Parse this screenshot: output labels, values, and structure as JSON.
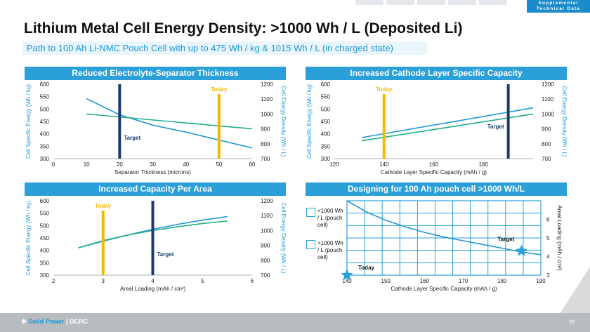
{
  "header": {
    "supplemental": [
      "Supplemental",
      "Technical Data"
    ],
    "title": "Lithium Metal Cell Energy Density: >1000 Wh / L (Deposited Li)",
    "subtitle": "Path to 100 Ah Li-NMC Pouch Cell with up to 475 Wh / kg & 1015 Wh / L (in charged state)"
  },
  "colors": {
    "blue_line": "#2196d6",
    "teal_line": "#1fae8c",
    "today": "#f5b800",
    "target": "#1b3b6f",
    "header": "#2a9fd8"
  },
  "footer": {
    "logo_solid": "Solid Power",
    "logo_dcrc": "DCRC",
    "page": "55"
  },
  "chart_data": [
    {
      "type": "line",
      "title": "Reduced Electrolyte-Separator Thickness",
      "xlabel": "Separator Thickness (microns)",
      "ylabel": "Cell Specific Energy (Wh / kg)",
      "y2label": "Cell Energy Density (Wh / L)",
      "xlim": [
        0,
        60
      ],
      "xticks": [
        0,
        10,
        20,
        30,
        40,
        50,
        60
      ],
      "ylim": [
        300,
        600
      ],
      "yticks": [
        300,
        350,
        400,
        450,
        500,
        550,
        600
      ],
      "y2lim": [
        700,
        1200
      ],
      "y2ticks": [
        700,
        800,
        900,
        1000,
        1100,
        1200
      ],
      "series": [
        {
          "axis": "y",
          "color": "blue",
          "x": [
            10,
            20,
            30,
            40,
            50,
            60
          ],
          "values": [
            542,
            477,
            435,
            407,
            375,
            343
          ]
        },
        {
          "axis": "y2",
          "color": "teal",
          "x": [
            10,
            60
          ],
          "values": [
            1000,
            900
          ]
        }
      ],
      "markers": [
        {
          "label": "Today",
          "x": 50,
          "color": "today"
        },
        {
          "label": "Target",
          "x": 20,
          "color": "target"
        }
      ]
    },
    {
      "type": "line",
      "title": "Increased Cathode Layer Specific Capacity",
      "xlabel": "Cathode Layer Specific Capacity (mAh / g)",
      "ylabel": "Cell Specific Energy (Wh / kg)",
      "y2label": "Cell Energy Density (Wh / L)",
      "xlim": [
        120,
        200
      ],
      "xticks": [
        120,
        140,
        160,
        180
      ],
      "ylim": [
        300,
        600
      ],
      "yticks": [
        300,
        350,
        400,
        450,
        500,
        550,
        600
      ],
      "y2lim": [
        700,
        1200
      ],
      "y2ticks": [
        700,
        800,
        900,
        1000,
        1100,
        1200
      ],
      "series": [
        {
          "axis": "y",
          "color": "blue",
          "x": [
            131,
            200
          ],
          "values": [
            385,
            505
          ]
        },
        {
          "axis": "y2",
          "color": "teal",
          "x": [
            131,
            200
          ],
          "values": [
            820,
            1000
          ]
        }
      ],
      "markers": [
        {
          "label": "Today",
          "x": 140,
          "color": "today"
        },
        {
          "label": "Target",
          "x": 190,
          "color": "target"
        }
      ]
    },
    {
      "type": "line",
      "title": "Increased Capacity Per Area",
      "xlabel": "Areal Loading (mAh / cm²)",
      "ylabel": "Cell Specific Energy (Wh / kg)",
      "y2label": "Cell Energy Density (Wh / L)",
      "xlim": [
        2,
        6
      ],
      "xticks": [
        2,
        3,
        4,
        5,
        6
      ],
      "ylim": [
        300,
        600
      ],
      "yticks": [
        300,
        350,
        400,
        450,
        500,
        550,
        600
      ],
      "y2lim": [
        700,
        1200
      ],
      "y2ticks": [
        700,
        800,
        900,
        1000,
        1100,
        1200
      ],
      "series": [
        {
          "axis": "y",
          "color": "blue",
          "x": [
            2.5,
            3,
            3.5,
            4,
            4.5,
            5,
            5.5
          ],
          "values": [
            410,
            437,
            462,
            485,
            505,
            522,
            536
          ]
        },
        {
          "axis": "y2",
          "color": "teal",
          "x": [
            2.5,
            3,
            3.5,
            4,
            4.5,
            5,
            5.5
          ],
          "values": [
            883,
            932,
            970,
            1000,
            1025,
            1047,
            1063
          ]
        }
      ],
      "markers": [
        {
          "label": "Today",
          "x": 3,
          "color": "today"
        },
        {
          "label": "Target",
          "x": 4,
          "color": "target"
        }
      ]
    },
    {
      "type": "line",
      "title": "Designing for 100 Ah pouch cell >1000 Wh/L",
      "xlabel": "Cathode Layer Specific Capacity (mAh / g)",
      "y2label": "Areal Loading (mAh / cm²)",
      "xlim": [
        140,
        190
      ],
      "xticks": [
        140,
        150,
        160,
        170,
        180,
        190
      ],
      "y2lim": [
        3,
        7
      ],
      "y2ticks": [
        3,
        4,
        5,
        6
      ],
      "grid": true,
      "legend": [
        {
          "label": "<1000 Wh / L (pouch cell)"
        },
        {
          "label": ">1000 Wh / L (pouch cell)"
        }
      ],
      "series": [
        {
          "axis": "y2",
          "color": "blue",
          "x": [
            140,
            145,
            150,
            155,
            160,
            165,
            170,
            175,
            180,
            185,
            190
          ],
          "values": [
            7.0,
            6.4,
            5.95,
            5.6,
            5.3,
            5.05,
            4.85,
            4.65,
            4.45,
            4.25,
            4.1
          ]
        }
      ],
      "markers": [
        {
          "label": "Today",
          "x": 140,
          "y": 3,
          "shape": "star"
        },
        {
          "label": "Target",
          "x": 185,
          "y": 4.3,
          "shape": "star"
        }
      ]
    }
  ]
}
